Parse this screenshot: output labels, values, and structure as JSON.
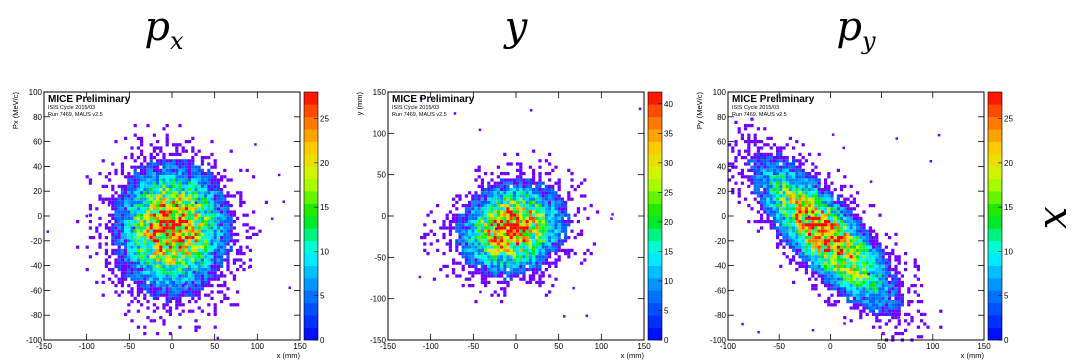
{
  "columns": [
    {
      "base": "p",
      "sub": "x"
    },
    {
      "base": "y",
      "sub": ""
    },
    {
      "base": "p",
      "sub": "y"
    }
  ],
  "row_label": "x",
  "chart_data": [
    {
      "type": "heatmap",
      "title": "",
      "xlabel": "x (mm)",
      "ylabel": "Px (MeV/c)",
      "xlim": [
        -150,
        150
      ],
      "ylim": [
        -100,
        100
      ],
      "xticks": [
        -150,
        -100,
        -50,
        0,
        50,
        100,
        150
      ],
      "yticks": [
        -100,
        -80,
        -60,
        -40,
        -20,
        0,
        20,
        40,
        60,
        80,
        100
      ],
      "zticks": [
        0,
        5,
        10,
        15,
        20,
        25
      ],
      "zmax": 28,
      "legend": [
        "MICE Preliminary",
        "ISIS Cycle 2015/03",
        "Run 7469, MAUS v2.5"
      ],
      "distribution": {
        "mean_x": 0,
        "mean_y": -10,
        "sigma_x": 38,
        "sigma_y": 30,
        "correlation": 0.0
      }
    },
    {
      "type": "heatmap",
      "title": "",
      "xlabel": "x (mm)",
      "ylabel": "y (mm)",
      "xlim": [
        -150,
        150
      ],
      "ylim": [
        -150,
        150
      ],
      "xticks": [
        -150,
        -100,
        -50,
        0,
        50,
        100,
        150
      ],
      "yticks": [
        -150,
        -100,
        -50,
        0,
        50,
        100,
        150
      ],
      "zticks": [
        0,
        5,
        10,
        15,
        20,
        25,
        30,
        35,
        40
      ],
      "zmax": 42,
      "legend": [
        "MICE Preliminary",
        "ISIS Cycle 2015/03",
        "Run 7469, MAUS v2.5"
      ],
      "distribution": {
        "mean_x": -5,
        "mean_y": -15,
        "sigma_x": 36,
        "sigma_y": 32,
        "correlation": 0.15
      }
    },
    {
      "type": "heatmap",
      "title": "",
      "xlabel": "x (mm)",
      "ylabel": "Py (MeV/c)",
      "xlim": [
        -100,
        150
      ],
      "ylim": [
        -100,
        100
      ],
      "xticks": [
        -100,
        -50,
        0,
        50,
        100,
        150
      ],
      "yticks": [
        -100,
        -80,
        -60,
        -40,
        -20,
        0,
        20,
        40,
        60,
        80,
        100
      ],
      "zticks": [
        0,
        5,
        10,
        15,
        20,
        25
      ],
      "zmax": 28,
      "legend": [
        "MICE Preliminary",
        "ISIS Cycle 2015/03",
        "Run 7469, MAUS v2.5"
      ],
      "distribution": {
        "mean_x": -5,
        "mean_y": -15,
        "sigma_x": 40,
        "sigma_y": 35,
        "correlation": -0.8
      }
    }
  ]
}
